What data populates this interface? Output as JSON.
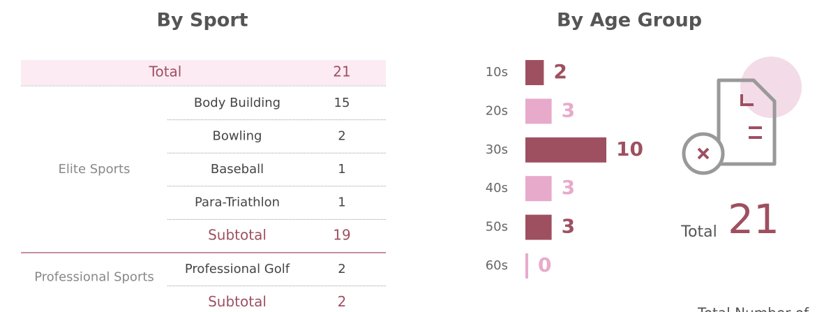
{
  "sport": {
    "title": "By Sport",
    "total": {
      "label": "Total",
      "value": 21
    },
    "groups": [
      {
        "name": "Elite Sports",
        "items": [
          {
            "name": "Body Building",
            "value": 15
          },
          {
            "name": "Bowling",
            "value": 2
          },
          {
            "name": "Baseball",
            "value": 1
          },
          {
            "name": "Para-Triathlon",
            "value": 1
          }
        ],
        "subtotal": {
          "label": "Subtotal",
          "value": 19
        }
      },
      {
        "name": "Professional Sports",
        "items": [
          {
            "name": "Professional Golf",
            "value": 2
          }
        ],
        "subtotal": {
          "label": "Subtotal",
          "value": 2
        }
      }
    ]
  },
  "chart_data": {
    "type": "bar",
    "title": "By Age Group",
    "categories": [
      "10s",
      "20s",
      "30s",
      "40s",
      "50s",
      "60s"
    ],
    "values": [
      2,
      3,
      10,
      3,
      3,
      0
    ],
    "colors": [
      "#9e5060",
      "#e8aacb",
      "#9e5060",
      "#e8aacb",
      "#9e5060",
      "#e8aacb"
    ]
  },
  "summary": {
    "label": "Total",
    "value": 21,
    "footer": "Total Number of"
  }
}
